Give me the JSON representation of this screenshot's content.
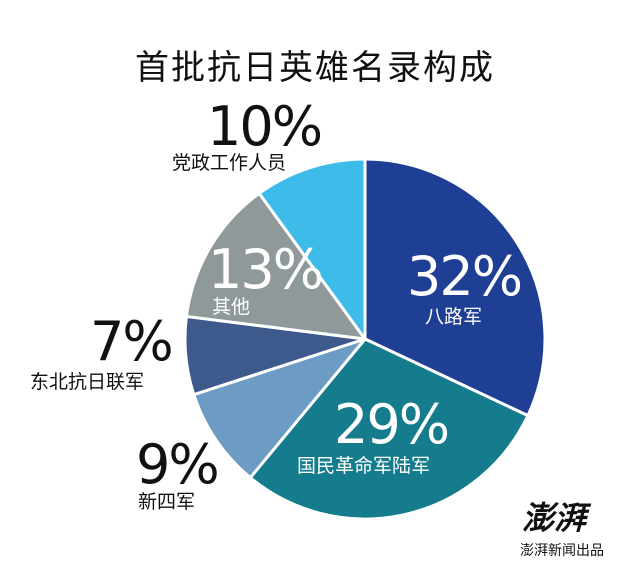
{
  "title": "首批抗日英雄名录构成",
  "chart_data": {
    "type": "pie",
    "title": "首批抗日英雄名录构成",
    "slices": [
      {
        "label": "八路军",
        "percent_label": "32%",
        "value": 32,
        "color": "#1f3f94"
      },
      {
        "label": "国民革命军陆军",
        "percent_label": "29%",
        "value": 29,
        "color": "#147c8c"
      },
      {
        "label": "新四军",
        "percent_label": "9%",
        "value": 9,
        "color": "#6c9bc3"
      },
      {
        "label": "东北抗日联军",
        "percent_label": "7%",
        "value": 7,
        "color": "#3e5a8c"
      },
      {
        "label": "其他",
        "percent_label": "13%",
        "value": 13,
        "color": "#8f999a"
      },
      {
        "label": "党政工作人员",
        "percent_label": "10%",
        "value": 10,
        "color": "#3dbbe9"
      }
    ],
    "start_angle": "12 o'clock",
    "direction": "clockwise"
  },
  "logo": {
    "name": "澎湃",
    "subtext": "澎湃新闻出品"
  }
}
